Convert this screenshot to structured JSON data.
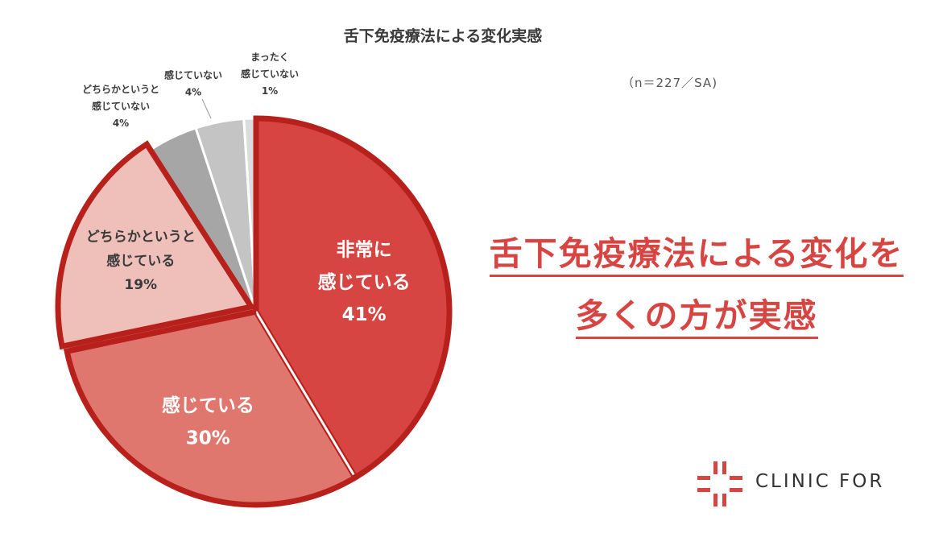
{
  "chart_data": {
    "type": "pie",
    "title": "舌下免疫療法による変化実感",
    "note": "（n＝227／SA)",
    "slices": [
      {
        "label_lines": [
          "非常に",
          "感じている"
        ],
        "value": 41,
        "value_label": "41%",
        "color": "#d64541"
      },
      {
        "label_lines": [
          "感じている"
        ],
        "value": 30,
        "value_label": "30%",
        "color": "#e0776e"
      },
      {
        "label_lines": [
          "どちらかというと",
          "感じている"
        ],
        "value": 19,
        "value_label": "19%",
        "color": "#efc0b9"
      },
      {
        "label_lines": [
          "どちらかというと",
          "感じていない"
        ],
        "value": 4,
        "value_label": "4%",
        "color": "#a6a6a6"
      },
      {
        "label_lines": [
          "感じていない"
        ],
        "value": 4,
        "value_label": "4%",
        "color": "#c4c4c4"
      },
      {
        "label_lines": [
          "まったく",
          "感じていない"
        ],
        "value": 1,
        "value_label": "1%",
        "color": "#dcdcdc"
      }
    ],
    "highlight_color": "#b8201c"
  },
  "headline": {
    "line1": "舌下免疫療法による変化を",
    "line2": "多くの方が実感"
  },
  "logo": {
    "text": "CLINIC FOR",
    "color": "#d64541"
  }
}
